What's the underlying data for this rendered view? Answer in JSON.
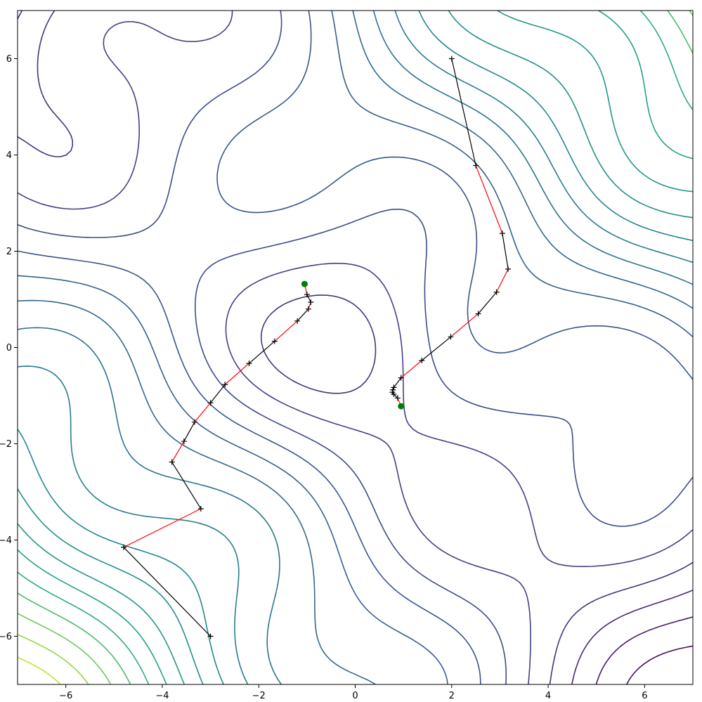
{
  "chart_data": {
    "type": "contour",
    "title": "",
    "xlabel": "",
    "ylabel": "",
    "xlim": [
      -7,
      7
    ],
    "ylim": [
      -7,
      7
    ],
    "x_ticks": [
      -6,
      -4,
      -2,
      0,
      2,
      4,
      6
    ],
    "y_ticks": [
      -6,
      -4,
      -2,
      0,
      2,
      4,
      6
    ],
    "x_tick_labels": [
      "−6",
      "−4",
      "−2",
      "0",
      "2",
      "4",
      "6"
    ],
    "y_tick_labels": [
      "−6",
      "−4",
      "−2",
      "0",
      "2",
      "4",
      "6"
    ],
    "grid": false,
    "colormap": "viridis",
    "contour_level_count": 20,
    "minima": [
      {
        "x": -1.05,
        "y": 1.32
      },
      {
        "x": 0.95,
        "y": -1.22
      }
    ],
    "paths": [
      {
        "points": [
          [
            -3.0,
            -6.0
          ],
          [
            -4.8,
            -4.15
          ],
          [
            -3.2,
            -3.35
          ],
          [
            -3.8,
            -2.38
          ],
          [
            -3.55,
            -1.95
          ],
          [
            -3.33,
            -1.55
          ],
          [
            -3.0,
            -1.15
          ],
          [
            -2.7,
            -0.77
          ],
          [
            -2.2,
            -0.33
          ],
          [
            -1.67,
            0.13
          ],
          [
            -1.2,
            0.55
          ],
          [
            -0.97,
            0.8
          ],
          [
            -0.92,
            0.94
          ],
          [
            -1.0,
            1.1
          ]
        ],
        "end": [
          -1.05,
          1.32
        ]
      },
      {
        "points": [
          [
            2.0,
            6.0
          ],
          [
            2.5,
            3.78
          ],
          [
            3.05,
            2.37
          ],
          [
            3.17,
            1.63
          ],
          [
            2.93,
            1.15
          ],
          [
            2.55,
            0.7
          ],
          [
            1.98,
            0.22
          ],
          [
            1.38,
            -0.27
          ],
          [
            0.95,
            -0.63
          ],
          [
            0.8,
            -0.83
          ],
          [
            0.78,
            -0.88
          ],
          [
            0.77,
            -0.93
          ],
          [
            0.8,
            -0.97
          ],
          [
            0.88,
            -1.05
          ]
        ],
        "end": [
          0.95,
          -1.22
        ]
      }
    ],
    "colors": {
      "step_a": "#000000",
      "step_b": "#ff0000",
      "minimum_marker": "#008000"
    }
  }
}
